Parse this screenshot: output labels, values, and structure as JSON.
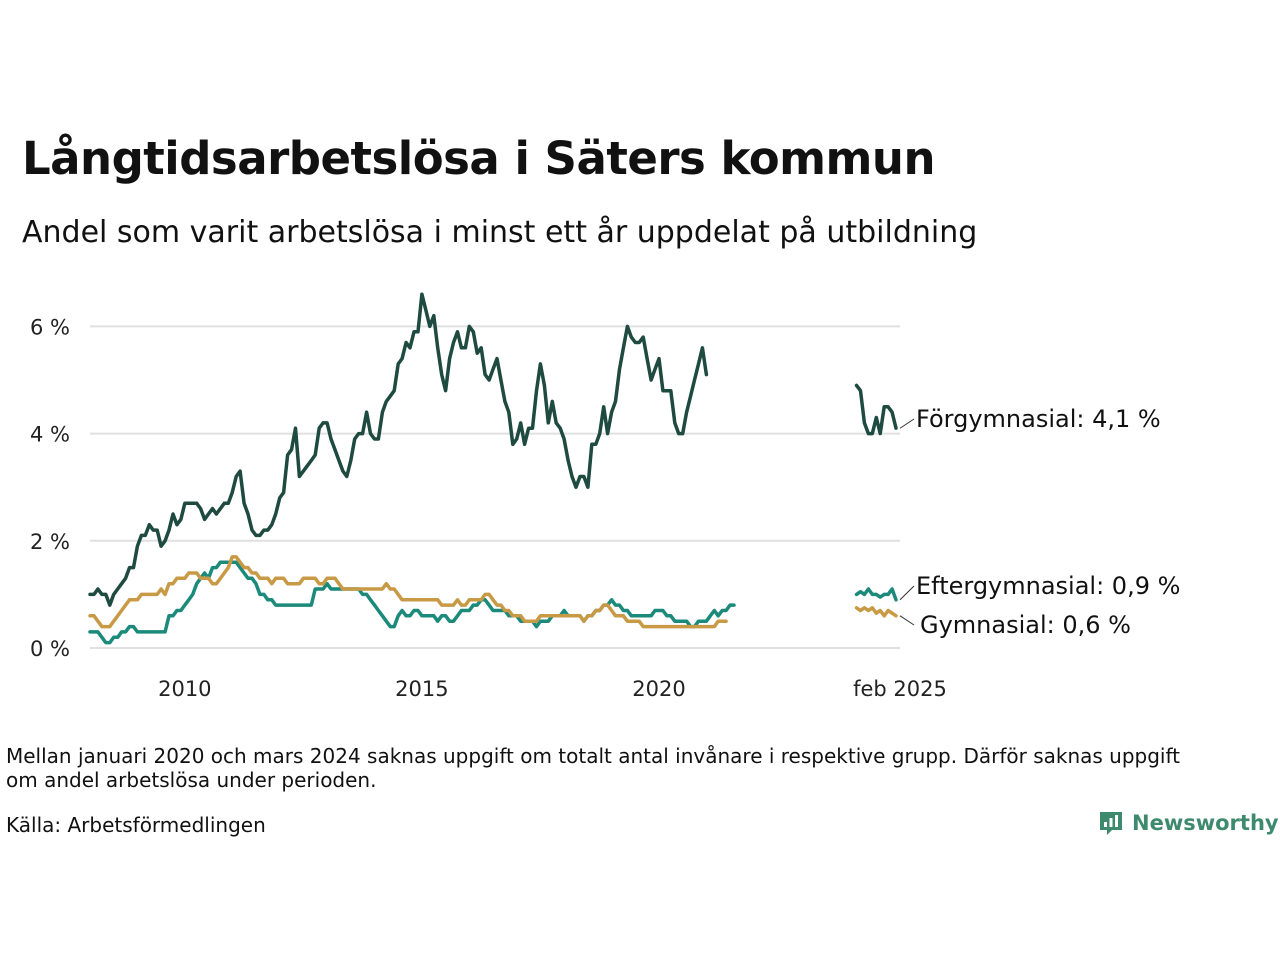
{
  "title": "Långtidsarbetslösa i Säters kommun",
  "subtitle": "Andel som varit arbetslösa i minst ett år uppdelat på utbildning",
  "note": "Mellan januari 2020 och mars 2024 saknas uppgift om totalt antal invånare i respektive grupp. Därför saknas uppgift om andel arbetslösa under perioden.",
  "source": "Källa: Arbetsförmedlingen",
  "logo": {
    "text": "Newsworthy",
    "icon": "newsworthy-bar-chart-icon",
    "color": "#3d8a6e"
  },
  "chart_data": {
    "type": "line",
    "x_axis": {
      "type": "date",
      "ticks": [
        {
          "value": "2010-01",
          "label": "2010"
        },
        {
          "value": "2015-01",
          "label": "2015"
        },
        {
          "value": "2020-01",
          "label": "2020"
        },
        {
          "value": "2025-02",
          "label": "feb 2025"
        }
      ]
    },
    "y_axis": {
      "ylim": [
        0,
        6.6
      ],
      "ticks": [
        {
          "value": 0,
          "label": "0 %"
        },
        {
          "value": 2,
          "label": "2 %"
        },
        {
          "value": 4,
          "label": "4 %"
        },
        {
          "value": 6,
          "label": "6 %"
        }
      ]
    },
    "grid": true,
    "series": [
      {
        "name": "Förgymnasial",
        "end_label": "Förgymnasial: 4,1 %",
        "color": "#1f4a40",
        "segments": [
          {
            "start": "2008-01",
            "values": [
              1.0,
              1.0,
              1.1,
              1.0,
              1.0,
              0.8,
              1.0,
              1.1,
              1.2,
              1.3,
              1.5,
              1.5,
              1.9,
              2.1,
              2.1,
              2.3,
              2.2,
              2.2,
              1.9,
              2.0,
              2.2,
              2.5,
              2.3,
              2.4,
              2.7,
              2.7,
              2.7,
              2.7,
              2.6,
              2.4,
              2.5,
              2.6,
              2.5,
              2.6,
              2.7,
              2.7,
              2.9,
              3.2,
              3.3,
              2.7,
              2.5,
              2.2,
              2.1,
              2.1,
              2.2,
              2.2,
              2.3,
              2.5,
              2.8,
              2.9,
              3.6,
              3.7,
              4.1,
              3.2,
              3.3,
              3.4,
              3.5,
              3.6,
              4.1,
              4.2,
              4.2,
              3.9,
              3.7,
              3.5,
              3.3,
              3.2,
              3.5,
              3.9,
              4.0,
              4.0,
              4.4,
              4.0,
              3.9,
              3.9,
              4.4,
              4.6,
              4.7,
              4.8,
              5.3,
              5.4,
              5.7,
              5.6,
              5.9,
              5.9,
              6.6,
              6.3,
              6.0,
              6.2,
              5.6,
              5.1,
              4.8,
              5.4,
              5.7,
              5.9,
              5.6,
              5.6,
              6.0,
              5.9,
              5.5,
              5.6,
              5.1,
              5.0,
              5.2,
              5.4,
              5.0,
              4.6,
              4.4,
              3.8,
              3.9,
              4.2,
              3.8,
              4.1,
              4.1,
              4.8,
              5.3,
              4.9,
              4.2,
              4.6,
              4.2,
              4.1,
              3.9,
              3.5,
              3.2,
              3.0,
              3.2,
              3.2,
              3.0,
              3.8,
              3.8,
              4.0,
              4.5,
              4.0,
              4.4,
              4.6,
              5.2,
              5.6,
              6.0,
              5.8,
              5.7,
              5.7,
              5.8,
              5.4,
              5.0,
              5.2,
              5.4,
              4.8,
              4.8,
              4.8,
              4.2,
              4.0,
              4.0,
              4.4,
              4.7,
              5.0,
              5.3,
              5.6,
              5.1
            ]
          },
          {
            "start": "2024-03",
            "values": [
              4.9,
              4.8,
              4.2,
              4.0,
              4.0,
              4.3,
              4.0,
              4.5,
              4.5,
              4.4,
              4.1
            ]
          }
        ]
      },
      {
        "name": "Eftergymnasial",
        "end_label": "Eftergymnasial: 0,9 %",
        "color": "#1b8a7a",
        "segments": [
          {
            "start": "2008-01",
            "values": [
              0.3,
              0.3,
              0.3,
              0.2,
              0.1,
              0.1,
              0.2,
              0.2,
              0.3,
              0.3,
              0.4,
              0.4,
              0.3,
              0.3,
              0.3,
              0.3,
              0.3,
              0.3,
              0.3,
              0.3,
              0.6,
              0.6,
              0.7,
              0.7,
              0.8,
              0.9,
              1.0,
              1.2,
              1.3,
              1.4,
              1.3,
              1.5,
              1.5,
              1.6,
              1.6,
              1.6,
              1.6,
              1.6,
              1.5,
              1.4,
              1.3,
              1.3,
              1.2,
              1.0,
              1.0,
              0.9,
              0.9,
              0.8,
              0.8,
              0.8,
              0.8,
              0.8,
              0.8,
              0.8,
              0.8,
              0.8,
              0.8,
              1.1,
              1.1,
              1.1,
              1.2,
              1.1,
              1.1,
              1.1,
              1.1,
              1.1,
              1.1,
              1.1,
              1.1,
              1.0,
              1.0,
              0.9,
              0.8,
              0.7,
              0.6,
              0.5,
              0.4,
              0.4,
              0.6,
              0.7,
              0.6,
              0.6,
              0.7,
              0.7,
              0.6,
              0.6,
              0.6,
              0.6,
              0.5,
              0.6,
              0.6,
              0.5,
              0.5,
              0.6,
              0.7,
              0.7,
              0.7,
              0.8,
              0.8,
              0.9,
              0.9,
              0.8,
              0.7,
              0.7,
              0.7,
              0.7,
              0.6,
              0.6,
              0.6,
              0.5,
              0.5,
              0.5,
              0.5,
              0.4,
              0.5,
              0.5,
              0.5,
              0.6,
              0.6,
              0.6,
              0.7,
              0.6,
              0.6,
              0.6,
              0.6,
              0.5,
              0.6,
              0.6,
              0.7,
              0.7,
              0.8,
              0.8,
              0.9,
              0.8,
              0.8,
              0.7,
              0.7,
              0.6,
              0.6,
              0.6,
              0.6,
              0.6,
              0.6,
              0.7,
              0.7,
              0.7,
              0.6,
              0.6,
              0.5,
              0.5,
              0.5,
              0.5,
              0.4,
              0.4,
              0.5,
              0.5,
              0.5,
              0.6,
              0.7,
              0.6,
              0.7,
              0.7,
              0.8,
              0.8
            ]
          },
          {
            "start": "2024-03",
            "values": [
              1.0,
              1.05,
              1.0,
              1.1,
              1.0,
              1.0,
              0.95,
              1.0,
              1.0,
              1.1,
              0.9
            ]
          }
        ]
      },
      {
        "name": "Gymnasial",
        "end_label": "Gymnasial: 0,6 %",
        "color": "#c99a45",
        "segments": [
          {
            "start": "2008-01",
            "values": [
              0.6,
              0.6,
              0.5,
              0.4,
              0.4,
              0.4,
              0.5,
              0.6,
              0.7,
              0.8,
              0.9,
              0.9,
              0.9,
              1.0,
              1.0,
              1.0,
              1.0,
              1.0,
              1.1,
              1.0,
              1.2,
              1.2,
              1.3,
              1.3,
              1.3,
              1.4,
              1.4,
              1.4,
              1.3,
              1.3,
              1.3,
              1.2,
              1.2,
              1.3,
              1.4,
              1.5,
              1.7,
              1.7,
              1.6,
              1.5,
              1.5,
              1.4,
              1.4,
              1.3,
              1.3,
              1.3,
              1.2,
              1.3,
              1.3,
              1.3,
              1.2,
              1.2,
              1.2,
              1.2,
              1.3,
              1.3,
              1.3,
              1.3,
              1.2,
              1.2,
              1.3,
              1.3,
              1.3,
              1.2,
              1.1,
              1.1,
              1.1,
              1.1,
              1.1,
              1.1,
              1.1,
              1.1,
              1.1,
              1.1,
              1.1,
              1.2,
              1.1,
              1.1,
              1.0,
              0.9,
              0.9,
              0.9,
              0.9,
              0.9,
              0.9,
              0.9,
              0.9,
              0.9,
              0.9,
              0.8,
              0.8,
              0.8,
              0.8,
              0.9,
              0.8,
              0.8,
              0.9,
              0.9,
              0.9,
              0.9,
              1.0,
              1.0,
              0.9,
              0.8,
              0.8,
              0.7,
              0.7,
              0.6,
              0.6,
              0.6,
              0.5,
              0.5,
              0.5,
              0.5,
              0.6,
              0.6,
              0.6,
              0.6,
              0.6,
              0.6,
              0.6,
              0.6,
              0.6,
              0.6,
              0.6,
              0.5,
              0.6,
              0.6,
              0.7,
              0.7,
              0.8,
              0.8,
              0.7,
              0.6,
              0.6,
              0.6,
              0.5,
              0.5,
              0.5,
              0.5,
              0.4,
              0.4,
              0.4,
              0.4,
              0.4,
              0.4,
              0.4,
              0.4,
              0.4,
              0.4,
              0.4,
              0.4,
              0.4,
              0.4,
              0.4,
              0.4,
              0.4,
              0.4,
              0.4,
              0.5,
              0.5,
              0.5
            ]
          },
          {
            "start": "2024-03",
            "values": [
              0.75,
              0.7,
              0.75,
              0.7,
              0.75,
              0.65,
              0.7,
              0.6,
              0.7,
              0.65,
              0.6
            ]
          }
        ]
      }
    ]
  }
}
